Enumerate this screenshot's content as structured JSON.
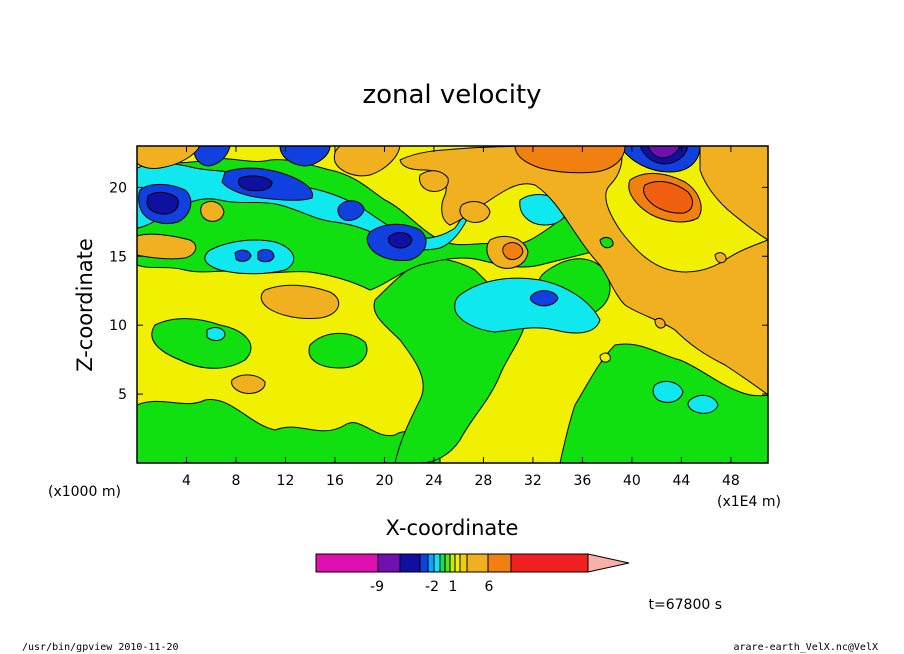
{
  "chart_data": {
    "type": "heatmap",
    "title": "zonal velocity",
    "xlabel": "X-coordinate",
    "ylabel": "Z-coordinate",
    "x_unit_left": "(x1000 m)",
    "x_unit_right": "(x1E4 m)",
    "xlim": [
      0,
      51
    ],
    "ylim": [
      0,
      23
    ],
    "x_ticks": [
      4,
      8,
      12,
      16,
      20,
      24,
      28,
      32,
      36,
      40,
      44,
      48
    ],
    "y_ticks": [
      5,
      10,
      15,
      20
    ],
    "colorbar": {
      "labels": [
        {
          "text": "-9",
          "value": -9
        },
        {
          "text": "-2",
          "value": -2
        },
        {
          "text": "1",
          "value": 1
        },
        {
          "text": "6",
          "value": 6
        }
      ],
      "colors": [
        "#e010b0",
        "#7010b0",
        "#1010a0",
        "#1040e0",
        "#10a0ff",
        "#10e0f0",
        "#10e060",
        "#60e010",
        "#c0f000",
        "#f0f000",
        "#f0d000",
        "#f0b020",
        "#f08010",
        "#f02020",
        "#f08070",
        "#f8b0a8"
      ]
    },
    "annotation": "t=67800 s"
  },
  "footer": {
    "left": "/usr/bin/gpview  2010-11-20",
    "right": "arare-earth_VelX.nc@VelX"
  }
}
